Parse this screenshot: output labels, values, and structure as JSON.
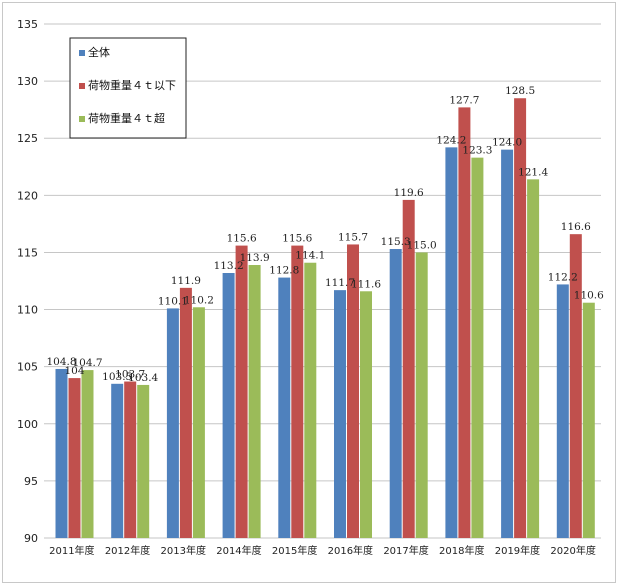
{
  "chart_data": {
    "type": "bar",
    "title": "",
    "xlabel": "",
    "ylabel": "",
    "ylim": [
      90,
      135
    ],
    "yticks": [
      90,
      95,
      100,
      105,
      110,
      115,
      120,
      125,
      130,
      135
    ],
    "grid": true,
    "legend_position": "top-left",
    "categories": [
      "2011年度",
      "2012年度",
      "2013年度",
      "2014年度",
      "2015年度",
      "2016年度",
      "2017年度",
      "2018年度",
      "2019年度",
      "2020年度"
    ],
    "series": [
      {
        "name": "全体",
        "color": "#4f81bd",
        "values": [
          104.8,
          103.5,
          110.1,
          113.2,
          112.8,
          111.7,
          115.3,
          124.2,
          124.0,
          112.2
        ],
        "labels": [
          "104.8",
          "103.5",
          "110.1",
          "113.2",
          "112.8",
          "111.7",
          "115.3",
          "124.2",
          "124.0",
          "112.2"
        ]
      },
      {
        "name": "荷物重量４ｔ以下",
        "color": "#c0504d",
        "values": [
          104,
          103.7,
          111.9,
          115.6,
          115.6,
          115.7,
          119.6,
          127.7,
          128.5,
          116.6
        ],
        "labels": [
          "104",
          "103.7",
          "111.9",
          "115.6",
          "115.6",
          "115.7",
          "119.6",
          "127.7",
          "128.5",
          "116.6"
        ]
      },
      {
        "name": "荷物重量４ｔ超",
        "color": "#9bbb59",
        "values": [
          104.7,
          103.4,
          110.2,
          113.9,
          114.1,
          111.6,
          115.0,
          123.3,
          121.4,
          110.6
        ],
        "labels": [
          "104.7",
          "103.4",
          "110.2",
          "113.9",
          "114.1",
          "111.6",
          "115.0",
          "123.3",
          "121.4",
          "110.6"
        ]
      }
    ]
  }
}
